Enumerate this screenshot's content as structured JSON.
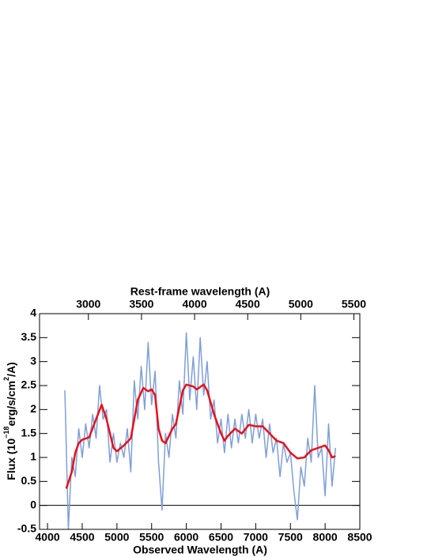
{
  "chart_data": {
    "type": "line",
    "xlabel": "Observed Wavelength (A)",
    "x2label": "Rest-frame wavelength (A)",
    "ylabel": [
      "Flux (10",
      "−18",
      "erg/s/cm",
      "2",
      "/A)"
    ],
    "xlim": [
      3885,
      8500
    ],
    "xticks": [
      4000,
      4500,
      5000,
      5500,
      6000,
      6500,
      7000,
      7500,
      8000,
      8500
    ],
    "x2lim": [
      2540,
      5556
    ],
    "x2ticks": [
      3000,
      3500,
      4000,
      4500,
      5000,
      5500
    ],
    "ylim": [
      -0.5,
      4
    ],
    "yticks": [
      -0.5,
      0,
      0.5,
      1,
      1.5,
      2,
      2.5,
      3,
      3.5,
      4
    ],
    "hline": 0,
    "series": [
      {
        "color": "#7f9fd6",
        "x": [
          4250,
          4300,
          4350,
          4400,
          4450,
          4500,
          4550,
          4600,
          4650,
          4700,
          4750,
          4800,
          4850,
          4900,
          4950,
          5000,
          5050,
          5100,
          5150,
          5200,
          5250,
          5300,
          5350,
          5400,
          5450,
          5500,
          5550,
          5600,
          5650,
          5700,
          5750,
          5800,
          5850,
          5900,
          5950,
          6000,
          6050,
          6100,
          6150,
          6200,
          6250,
          6300,
          6350,
          6400,
          6450,
          6500,
          6550,
          6600,
          6650,
          6700,
          6750,
          6800,
          6850,
          6900,
          6950,
          7000,
          7050,
          7100,
          7150,
          7200,
          7250,
          7300,
          7350,
          7400,
          7450,
          7500,
          7550,
          7600,
          7650,
          7700,
          7750,
          7800,
          7850,
          7900,
          7950,
          8000,
          8050,
          8100,
          8150
        ],
        "values": [
          2.4,
          -0.5,
          1.0,
          0.6,
          1.6,
          1.0,
          1.7,
          1.2,
          1.9,
          1.4,
          2.5,
          1.8,
          2.0,
          0.9,
          1.5,
          0.9,
          1.3,
          1.0,
          1.6,
          0.7,
          2.6,
          1.8,
          2.9,
          2.0,
          3.4,
          2.1,
          2.8,
          0.9,
          -0.1,
          1.5,
          1.0,
          1.9,
          1.4,
          2.6,
          1.9,
          3.6,
          2.2,
          3.1,
          2.0,
          3.5,
          2.3,
          3.0,
          1.8,
          2.2,
          1.3,
          1.8,
          1.1,
          1.9,
          1.2,
          1.8,
          1.3,
          1.9,
          1.4,
          2.0,
          1.3,
          1.9,
          1.4,
          1.8,
          1.0,
          1.7,
          1.1,
          1.4,
          0.6,
          1.3,
          0.9,
          1.1,
          0.3,
          -0.3,
          0.8,
          0.4,
          1.4,
          0.9,
          2.5,
          1.0,
          1.2,
          0.2,
          1.7,
          0.4,
          1.2
        ]
      },
      {
        "color": "#e8101a",
        "x": [
          4270,
          4350,
          4400,
          4450,
          4500,
          4600,
          4700,
          4780,
          4850,
          4950,
          5000,
          5100,
          5200,
          5300,
          5380,
          5450,
          5500,
          5550,
          5600,
          5650,
          5700,
          5800,
          5850,
          5950,
          6000,
          6100,
          6150,
          6250,
          6300,
          6400,
          6500,
          6550,
          6600,
          6700,
          6800,
          6900,
          7000,
          7100,
          7200,
          7300,
          7400,
          7500,
          7600,
          7700,
          7800,
          7900,
          8000,
          8050,
          8100,
          8150
        ],
        "values": [
          0.35,
          0.7,
          1.1,
          1.3,
          1.37,
          1.42,
          1.8,
          2.1,
          1.8,
          1.2,
          1.13,
          1.25,
          1.4,
          2.2,
          2.45,
          2.38,
          2.42,
          2.3,
          1.6,
          1.35,
          1.3,
          1.6,
          1.7,
          2.4,
          2.52,
          2.48,
          2.42,
          2.52,
          2.4,
          1.9,
          1.5,
          1.35,
          1.45,
          1.6,
          1.5,
          1.68,
          1.65,
          1.65,
          1.5,
          1.35,
          1.3,
          1.1,
          0.98,
          1.0,
          1.15,
          1.2,
          1.25,
          1.15,
          1.0,
          1.03
        ]
      }
    ]
  }
}
